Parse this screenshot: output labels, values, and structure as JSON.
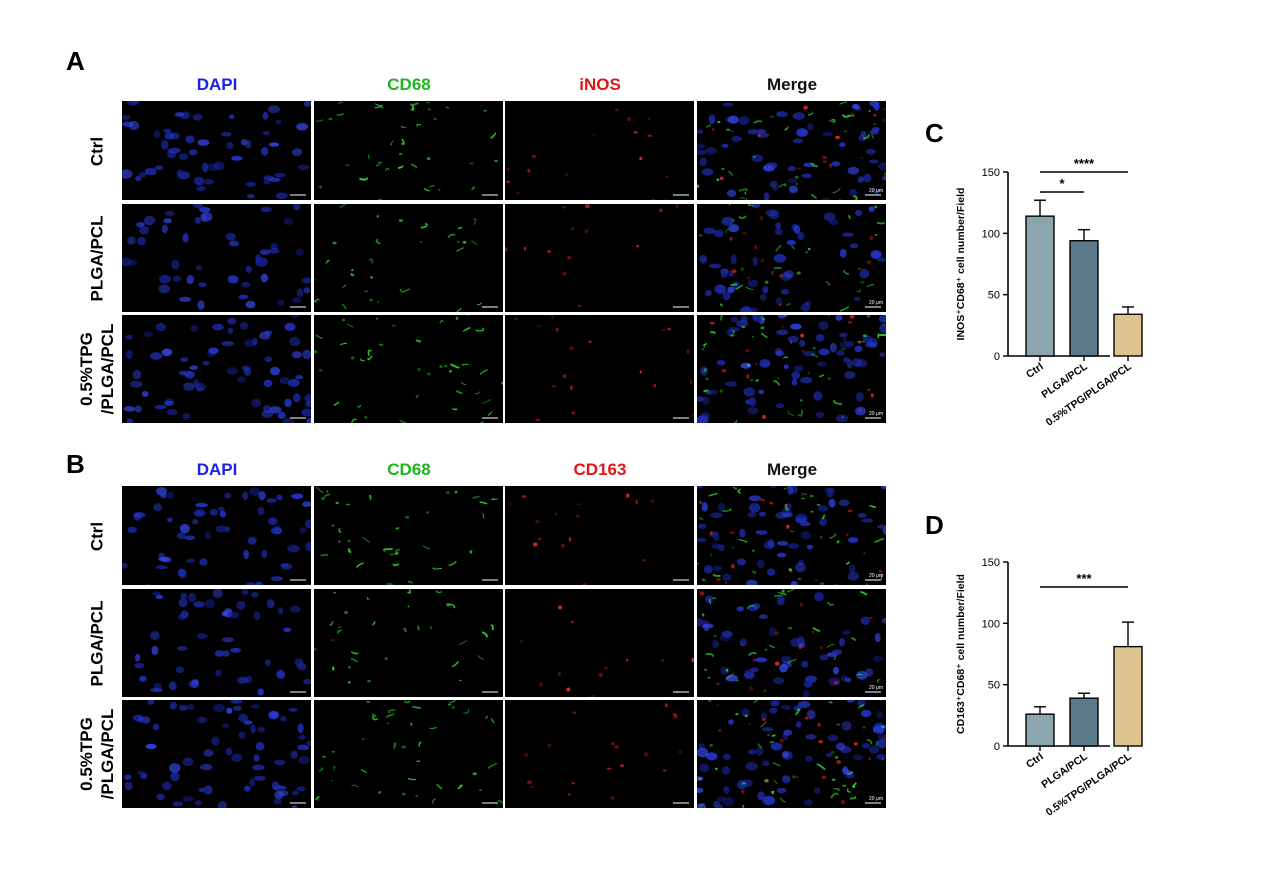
{
  "panels": {
    "A": {
      "letter": "A",
      "columns": [
        "DAPI",
        "CD68",
        "iNOS",
        "Merge"
      ],
      "column_colors": [
        "#1a22e6",
        "#1fb51f",
        "#e21515",
        "#111111"
      ],
      "rows": [
        "Ctrl",
        "PLGA/PCL",
        "0.5%TPG\n/PLGA/PCL"
      ],
      "scale_label": "20 μm"
    },
    "B": {
      "letter": "B",
      "columns": [
        "DAPI",
        "CD68",
        "CD163",
        "Merge"
      ],
      "column_colors": [
        "#1a22e6",
        "#1fb51f",
        "#e21515",
        "#111111"
      ],
      "rows": [
        "Ctrl",
        "PLGA/PCL",
        "0.5%TPG\n/PLGA/PCL"
      ],
      "scale_label": "20 μm"
    },
    "C": {
      "letter": "C"
    },
    "D": {
      "letter": "D"
    }
  },
  "chart_data": [
    {
      "panel": "C",
      "type": "bar",
      "categories": [
        "Ctrl",
        "PLGA/PCL",
        "0.5%TPG/PLGA/PCL"
      ],
      "values": [
        114,
        94,
        34
      ],
      "errors": [
        13,
        9,
        6
      ],
      "colors": [
        "#8aa5ad",
        "#5a7a8a",
        "#dcc38f"
      ],
      "ylabel": "INOS⁺CD68⁺ cell number/Field",
      "ylim": [
        0,
        150
      ],
      "yticks": [
        0,
        50,
        100,
        150
      ],
      "significance": [
        {
          "from": 0,
          "to": 1,
          "label": "*"
        },
        {
          "from": 0,
          "to": 2,
          "label": "****"
        }
      ]
    },
    {
      "panel": "D",
      "type": "bar",
      "categories": [
        "Ctrl",
        "PLGA/PCL",
        "0.5%TPG/PLGA/PCL"
      ],
      "values": [
        26,
        39,
        81
      ],
      "errors": [
        6,
        4,
        20
      ],
      "colors": [
        "#8aa5ad",
        "#5a7a8a",
        "#dcc38f"
      ],
      "ylabel": "CD163⁺CD68⁺ cell number/Field",
      "ylim": [
        0,
        150
      ],
      "yticks": [
        0,
        50,
        100,
        150
      ],
      "significance": [
        {
          "from": 0,
          "to": 2,
          "label": "***"
        }
      ]
    }
  ]
}
